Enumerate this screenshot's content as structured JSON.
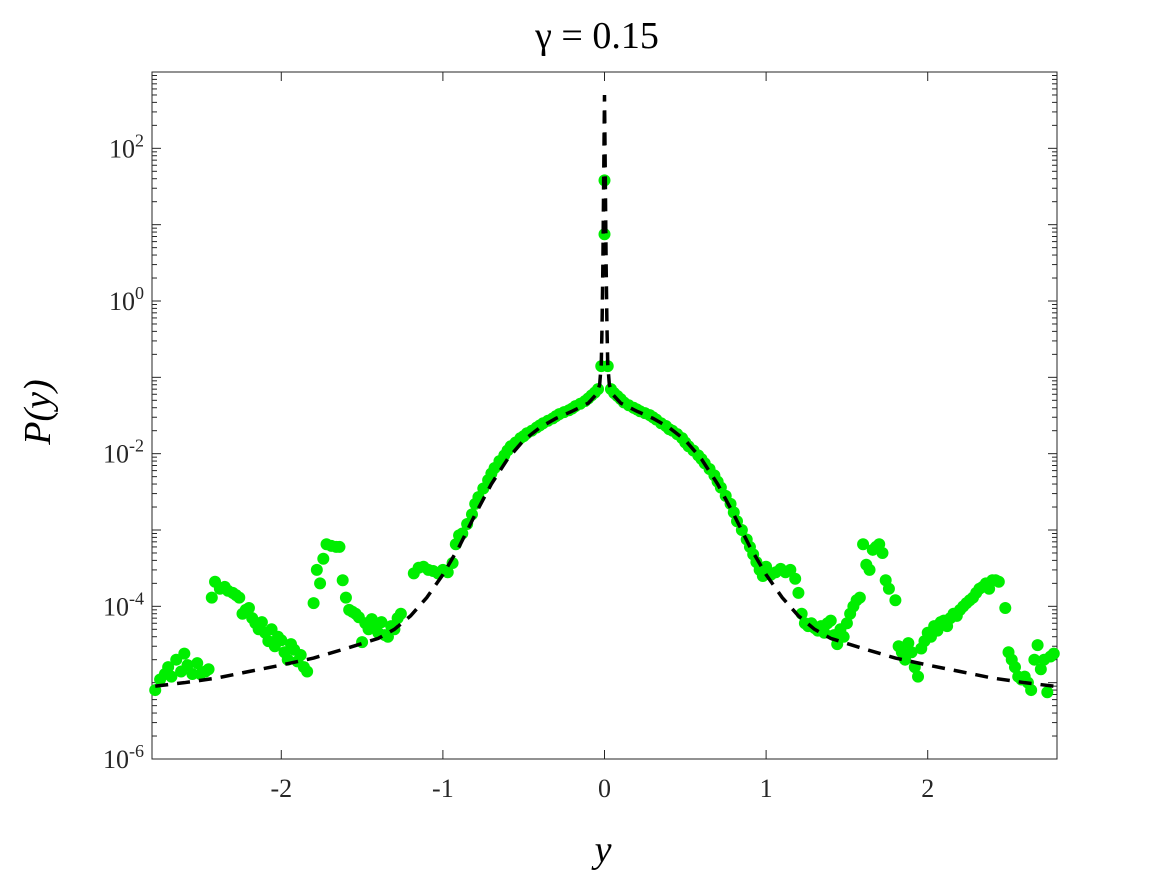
{
  "chart_data": {
    "type": "scatter",
    "title": "γ = 0.15",
    "xlabel": "y",
    "ylabel": "P(y)",
    "xlim": [
      -2.8,
      2.8
    ],
    "ylim": [
      1e-06,
      1000
    ],
    "yscale": "log",
    "grid": false,
    "x_ticks": [
      -2,
      -1,
      0,
      1,
      2
    ],
    "x_tick_labels": [
      "-2",
      "-1",
      "0",
      "1",
      "2"
    ],
    "y_ticks": [
      {
        "value": 1e-06,
        "base": "10",
        "exp": "-6"
      },
      {
        "value": 0.0001,
        "base": "10",
        "exp": "-4"
      },
      {
        "value": 0.01,
        "base": "10",
        "exp": "-2"
      },
      {
        "value": 1,
        "base": "10",
        "exp": "0"
      },
      {
        "value": 100,
        "base": "10",
        "exp": "2"
      }
    ],
    "colors": {
      "points": "#00ee00",
      "curve": "#000000"
    },
    "series": [
      {
        "type": "scatter",
        "points": [
          [
            -2.78,
            8e-06
          ],
          [
            -2.75,
            1.1e-05
          ],
          [
            -2.72,
            1.3e-05
          ],
          [
            -2.7,
            1.6e-05
          ],
          [
            -2.68,
            1.2e-05
          ],
          [
            -2.65,
            2e-05
          ],
          [
            -2.62,
            1.4e-05
          ],
          [
            -2.6,
            2.4e-05
          ],
          [
            -2.58,
            1.7e-05
          ],
          [
            -2.55,
            1.3e-05
          ],
          [
            -2.52,
            1.8e-05
          ],
          [
            -2.5,
            1.3e-05
          ],
          [
            -2.47,
            1.4e-05
          ],
          [
            -2.45,
            1.5e-05
          ],
          [
            -2.43,
            0.00013
          ],
          [
            -2.41,
            0.00021
          ],
          [
            -2.38,
            0.00017
          ],
          [
            -2.35,
            0.00018
          ],
          [
            -2.33,
            0.00016
          ],
          [
            -2.3,
            0.00015
          ],
          [
            -2.28,
            0.00014
          ],
          [
            -2.26,
            0.00013
          ],
          [
            -2.24,
            8e-05
          ],
          [
            -2.22,
            9e-05
          ],
          [
            -2.2,
            9.5e-05
          ],
          [
            -2.18,
            7e-05
          ],
          [
            -2.16,
            6e-05
          ],
          [
            -2.14,
            5e-05
          ],
          [
            -2.12,
            6.2e-05
          ],
          [
            -2.1,
            4.5e-05
          ],
          [
            -2.08,
            3.5e-05
          ],
          [
            -2.06,
            5e-05
          ],
          [
            -2.04,
            3e-05
          ],
          [
            -2.02,
            4e-05
          ],
          [
            -2.0,
            3.6e-05
          ],
          [
            -1.98,
            2.5e-05
          ],
          [
            -1.96,
            2e-05
          ],
          [
            -1.94,
            3.2e-05
          ],
          [
            -1.92,
            2.7e-05
          ],
          [
            -1.9,
            1.9e-05
          ],
          [
            -1.88,
            2.3e-05
          ],
          [
            -1.86,
            1.6e-05
          ],
          [
            -1.84,
            1.4e-05
          ],
          [
            -1.8,
            0.00011
          ],
          [
            -1.78,
            0.0003
          ],
          [
            -1.76,
            0.0002
          ],
          [
            -1.74,
            0.00042
          ],
          [
            -1.72,
            0.00065
          ],
          [
            -1.69,
            0.00062
          ],
          [
            -1.66,
            0.0006
          ],
          [
            -1.64,
            0.0006
          ],
          [
            -1.62,
            0.00022
          ],
          [
            -1.6,
            0.00013
          ],
          [
            -1.58,
            9e-05
          ],
          [
            -1.56,
            8.5e-05
          ],
          [
            -1.54,
            8e-05
          ],
          [
            -1.52,
            7.2e-05
          ],
          [
            -1.5,
            3.4e-05
          ],
          [
            -1.48,
            6e-05
          ],
          [
            -1.46,
            5e-05
          ],
          [
            -1.44,
            6.8e-05
          ],
          [
            -1.42,
            5.2e-05
          ],
          [
            -1.4,
            4.5e-05
          ],
          [
            -1.38,
            6.2e-05
          ],
          [
            -1.36,
            4.2e-05
          ],
          [
            -1.34,
            4e-05
          ],
          [
            -1.32,
            5.5e-05
          ],
          [
            -1.3,
            5e-05
          ],
          [
            -1.28,
            7e-05
          ],
          [
            -1.26,
            8e-05
          ],
          [
            -1.18,
            0.00027
          ],
          [
            -1.15,
            0.00032
          ],
          [
            -1.12,
            0.00033
          ],
          [
            -1.09,
            0.0003
          ],
          [
            -1.06,
            0.00029
          ],
          [
            -1.03,
            0.00027
          ],
          [
            -1.0,
            0.0003
          ],
          [
            -0.97,
            0.00028
          ],
          [
            -0.94,
            0.00037
          ],
          [
            -0.92,
            0.00065
          ],
          [
            -0.9,
            0.00085
          ],
          [
            -0.88,
            0.0009
          ],
          [
            -0.85,
            0.0012
          ],
          [
            -0.82,
            0.0016
          ],
          [
            -0.8,
            0.0022
          ],
          [
            -0.78,
            0.0027
          ],
          [
            -0.75,
            0.0035
          ],
          [
            -0.72,
            0.0045
          ],
          [
            -0.7,
            0.0055
          ],
          [
            -0.68,
            0.0065
          ],
          [
            -0.65,
            0.008
          ],
          [
            -0.62,
            0.0095
          ],
          [
            -0.6,
            0.011
          ],
          [
            -0.58,
            0.0125
          ],
          [
            -0.55,
            0.014
          ],
          [
            -0.52,
            0.016
          ],
          [
            -0.5,
            0.017
          ],
          [
            -0.48,
            0.0185
          ],
          [
            -0.45,
            0.02
          ],
          [
            -0.42,
            0.022
          ],
          [
            -0.4,
            0.0235
          ],
          [
            -0.38,
            0.025
          ],
          [
            -0.35,
            0.027
          ],
          [
            -0.32,
            0.029
          ],
          [
            -0.3,
            0.031
          ],
          [
            -0.28,
            0.033
          ],
          [
            -0.25,
            0.035
          ],
          [
            -0.22,
            0.037
          ],
          [
            -0.2,
            0.039
          ],
          [
            -0.18,
            0.042
          ],
          [
            -0.15,
            0.045
          ],
          [
            -0.12,
            0.049
          ],
          [
            -0.1,
            0.053
          ],
          [
            -0.08,
            0.058
          ],
          [
            -0.06,
            0.063
          ],
          [
            -0.04,
            0.07
          ],
          [
            -0.02,
            0.14
          ],
          [
            0.0,
            7.5
          ],
          [
            0.0,
            38
          ],
          [
            0.02,
            0.14
          ],
          [
            0.04,
            0.07
          ],
          [
            0.06,
            0.062
          ],
          [
            0.08,
            0.057
          ],
          [
            0.1,
            0.052
          ],
          [
            0.12,
            0.047
          ],
          [
            0.15,
            0.043
          ],
          [
            0.18,
            0.04
          ],
          [
            0.2,
            0.038
          ],
          [
            0.22,
            0.036
          ],
          [
            0.25,
            0.034
          ],
          [
            0.28,
            0.032
          ],
          [
            0.3,
            0.03
          ],
          [
            0.32,
            0.028
          ],
          [
            0.35,
            0.025
          ],
          [
            0.38,
            0.023
          ],
          [
            0.4,
            0.021
          ],
          [
            0.42,
            0.02
          ],
          [
            0.45,
            0.018
          ],
          [
            0.48,
            0.016
          ],
          [
            0.5,
            0.014
          ],
          [
            0.52,
            0.0125
          ],
          [
            0.55,
            0.011
          ],
          [
            0.58,
            0.0095
          ],
          [
            0.6,
            0.0085
          ],
          [
            0.62,
            0.0075
          ],
          [
            0.65,
            0.0063
          ],
          [
            0.68,
            0.0052
          ],
          [
            0.7,
            0.0043
          ],
          [
            0.72,
            0.0036
          ],
          [
            0.75,
            0.0028
          ],
          [
            0.78,
            0.0022
          ],
          [
            0.8,
            0.0017
          ],
          [
            0.82,
            0.0013
          ],
          [
            0.85,
            0.001
          ],
          [
            0.88,
            0.00075
          ],
          [
            0.9,
            0.0006
          ],
          [
            0.92,
            0.00048
          ],
          [
            0.94,
            0.00038
          ],
          [
            0.96,
            0.0003
          ],
          [
            0.98,
            0.00025
          ],
          [
            1.0,
            0.00033
          ],
          [
            1.03,
            0.00026
          ],
          [
            1.06,
            0.00028
          ],
          [
            1.09,
            0.00031
          ],
          [
            1.12,
            0.00028
          ],
          [
            1.15,
            0.0003
          ],
          [
            1.18,
            0.00023
          ],
          [
            1.2,
            0.00015
          ],
          [
            1.22,
            8e-05
          ],
          [
            1.24,
            6e-05
          ],
          [
            1.26,
            5.5e-05
          ],
          [
            1.28,
            6e-05
          ],
          [
            1.3,
            5.2e-05
          ],
          [
            1.32,
            4.8e-05
          ],
          [
            1.34,
            5.5e-05
          ],
          [
            1.36,
            4.5e-05
          ],
          [
            1.38,
            6e-05
          ],
          [
            1.4,
            6.5e-05
          ],
          [
            1.42,
            4.2e-05
          ],
          [
            1.44,
            3.2e-05
          ],
          [
            1.46,
            5e-05
          ],
          [
            1.48,
            4e-05
          ],
          [
            1.5,
            6e-05
          ],
          [
            1.52,
            8e-05
          ],
          [
            1.54,
            0.0001
          ],
          [
            1.56,
            0.00012
          ],
          [
            1.58,
            0.00013
          ],
          [
            1.6,
            0.00065
          ],
          [
            1.62,
            0.00035
          ],
          [
            1.64,
            0.0003
          ],
          [
            1.66,
            0.00055
          ],
          [
            1.68,
            0.0006
          ],
          [
            1.7,
            0.00065
          ],
          [
            1.72,
            0.0005
          ],
          [
            1.74,
            0.00022
          ],
          [
            1.76,
            0.00017
          ],
          [
            1.8,
            0.00012
          ],
          [
            1.82,
            3e-05
          ],
          [
            1.84,
            2.5e-05
          ],
          [
            1.86,
            2e-05
          ],
          [
            1.88,
            3.3e-05
          ],
          [
            1.9,
            2.5e-05
          ],
          [
            1.92,
            1.6e-05
          ],
          [
            1.94,
            1.2e-05
          ],
          [
            1.96,
            2.8e-05
          ],
          [
            1.98,
            3.5e-05
          ],
          [
            2.0,
            4.5e-05
          ],
          [
            2.02,
            4e-05
          ],
          [
            2.04,
            5.5e-05
          ],
          [
            2.06,
            4.8e-05
          ],
          [
            2.08,
            6.2e-05
          ],
          [
            2.1,
            6.5e-05
          ],
          [
            2.12,
            5.5e-05
          ],
          [
            2.14,
            7e-05
          ],
          [
            2.16,
            8e-05
          ],
          [
            2.18,
            7.5e-05
          ],
          [
            2.2,
            9e-05
          ],
          [
            2.22,
            0.0001
          ],
          [
            2.24,
            0.00011
          ],
          [
            2.26,
            0.00012
          ],
          [
            2.28,
            0.00013
          ],
          [
            2.3,
            0.00015
          ],
          [
            2.32,
            0.00017
          ],
          [
            2.34,
            0.00018
          ],
          [
            2.36,
            0.0002
          ],
          [
            2.38,
            0.00017
          ],
          [
            2.4,
            0.00022
          ],
          [
            2.42,
            0.00022
          ],
          [
            2.44,
            0.00021
          ],
          [
            2.48,
            9.5e-05
          ],
          [
            2.5,
            2.5e-05
          ],
          [
            2.52,
            2e-05
          ],
          [
            2.54,
            1.6e-05
          ],
          [
            2.56,
            1.2e-05
          ],
          [
            2.58,
            1.1e-05
          ],
          [
            2.6,
            1.2e-05
          ],
          [
            2.62,
            1e-05
          ],
          [
            2.64,
            8e-06
          ],
          [
            2.66,
            2e-05
          ],
          [
            2.68,
            3.1e-05
          ],
          [
            2.7,
            1.5e-05
          ],
          [
            2.72,
            2e-05
          ],
          [
            2.74,
            7.5e-06
          ],
          [
            2.76,
            2.2e-05
          ],
          [
            2.78,
            2.4e-05
          ]
        ]
      },
      {
        "type": "line",
        "style": "dashed",
        "points": [
          [
            -2.78,
            9e-06
          ],
          [
            -2.6,
            1e-05
          ],
          [
            -2.4,
            1.15e-05
          ],
          [
            -2.2,
            1.4e-05
          ],
          [
            -2.0,
            1.7e-05
          ],
          [
            -1.8,
            2.1e-05
          ],
          [
            -1.6,
            2.8e-05
          ],
          [
            -1.4,
            3.8e-05
          ],
          [
            -1.3,
            5e-05
          ],
          [
            -1.2,
            7.5e-05
          ],
          [
            -1.1,
            0.00013
          ],
          [
            -1.0,
            0.00026
          ],
          [
            -0.9,
            0.0006
          ],
          [
            -0.8,
            0.0016
          ],
          [
            -0.7,
            0.004
          ],
          [
            -0.6,
            0.0085
          ],
          [
            -0.5,
            0.015
          ],
          [
            -0.4,
            0.022
          ],
          [
            -0.3,
            0.029
          ],
          [
            -0.2,
            0.036
          ],
          [
            -0.1,
            0.046
          ],
          [
            -0.05,
            0.06
          ],
          [
            -0.03,
            0.08
          ],
          [
            -0.02,
            0.15
          ],
          [
            -0.015,
            0.5
          ],
          [
            -0.01,
            3
          ],
          [
            -0.005,
            40
          ],
          [
            0.0,
            500
          ],
          [
            0.005,
            40
          ],
          [
            0.01,
            3
          ],
          [
            0.015,
            0.5
          ],
          [
            0.02,
            0.15
          ],
          [
            0.03,
            0.08
          ],
          [
            0.05,
            0.06
          ],
          [
            0.1,
            0.046
          ],
          [
            0.2,
            0.036
          ],
          [
            0.3,
            0.029
          ],
          [
            0.4,
            0.022
          ],
          [
            0.5,
            0.015
          ],
          [
            0.6,
            0.0085
          ],
          [
            0.7,
            0.004
          ],
          [
            0.8,
            0.0016
          ],
          [
            0.9,
            0.0006
          ],
          [
            1.0,
            0.00026
          ],
          [
            1.1,
            0.00013
          ],
          [
            1.2,
            7.5e-05
          ],
          [
            1.3,
            5e-05
          ],
          [
            1.4,
            3.8e-05
          ],
          [
            1.6,
            2.8e-05
          ],
          [
            1.8,
            2.1e-05
          ],
          [
            2.0,
            1.7e-05
          ],
          [
            2.2,
            1.4e-05
          ],
          [
            2.4,
            1.15e-05
          ],
          [
            2.6,
            1e-05
          ],
          [
            2.78,
            9e-06
          ]
        ]
      }
    ]
  }
}
